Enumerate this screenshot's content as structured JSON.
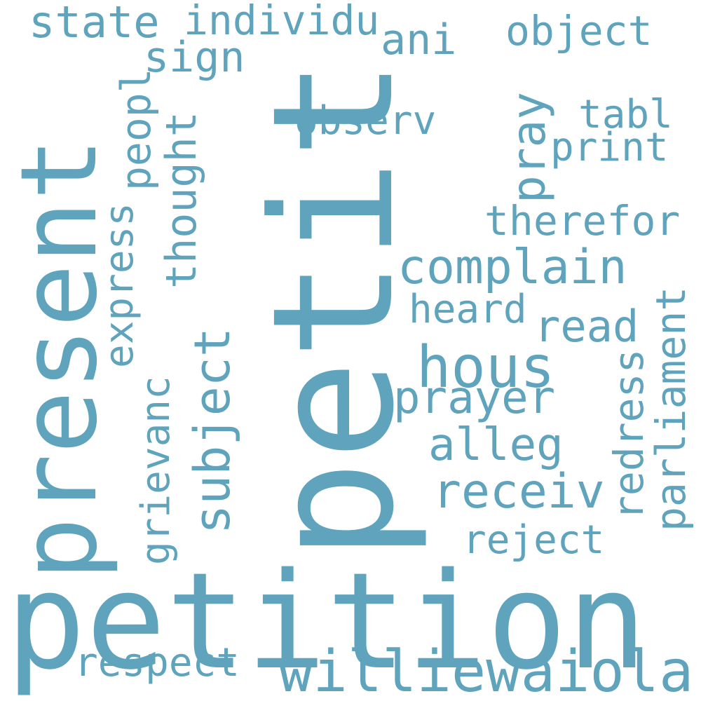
{
  "color": "#5fa4bc",
  "background": "#ffffff",
  "words": {
    "petition": "petition",
    "petit": "petit",
    "present": "present",
    "williewaiola": "williewaiola",
    "respect": "respect",
    "hous": "hous",
    "prayer": "prayer",
    "complain": "complain",
    "receiv": "receiv",
    "alleg": "alleg",
    "reject": "reject",
    "heard": "heard",
    "read": "read",
    "therefor": "therefor",
    "print": "print",
    "tabl": "tabl",
    "object": "object",
    "ani": "ani",
    "individu": "individu",
    "state": "state",
    "sign": "sign",
    "observ": "observ",
    "pray": "pray",
    "peopl": "peopl",
    "thought": "thought",
    "express": "express",
    "subject": "subject",
    "grievanc": "grievanc",
    "redress": "redress",
    "parliament": "parliament"
  }
}
